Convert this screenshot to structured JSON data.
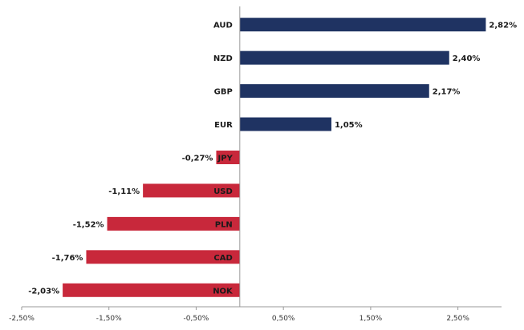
{
  "chart_data": {
    "type": "bar",
    "orientation": "horizontal",
    "categories": [
      "AUD",
      "NZD",
      "GBP",
      "EUR",
      "JPY",
      "USD",
      "PLN",
      "CAD",
      "NOK"
    ],
    "values": [
      2.82,
      2.4,
      2.17,
      1.05,
      -0.27,
      -1.11,
      -1.52,
      -1.76,
      -2.03
    ],
    "value_labels": [
      "2,82%",
      "2,40%",
      "2,17%",
      "1,05%",
      "-0,27%",
      "-1,11%",
      "-1,52%",
      "-1,76%",
      "-2,03%"
    ],
    "xlim": [
      -2.5,
      3.0
    ],
    "xticks": [
      -2.5,
      -1.5,
      -0.5,
      0.5,
      1.5,
      2.5
    ],
    "xtick_labels": [
      "-2,50%",
      "-1,50%",
      "-0,50%",
      "0,50%",
      "1,50%",
      "2,50%"
    ],
    "grid": false,
    "colors": {
      "positive": "#1f3362",
      "negative": "#c8283b",
      "axis": "#999999"
    }
  }
}
